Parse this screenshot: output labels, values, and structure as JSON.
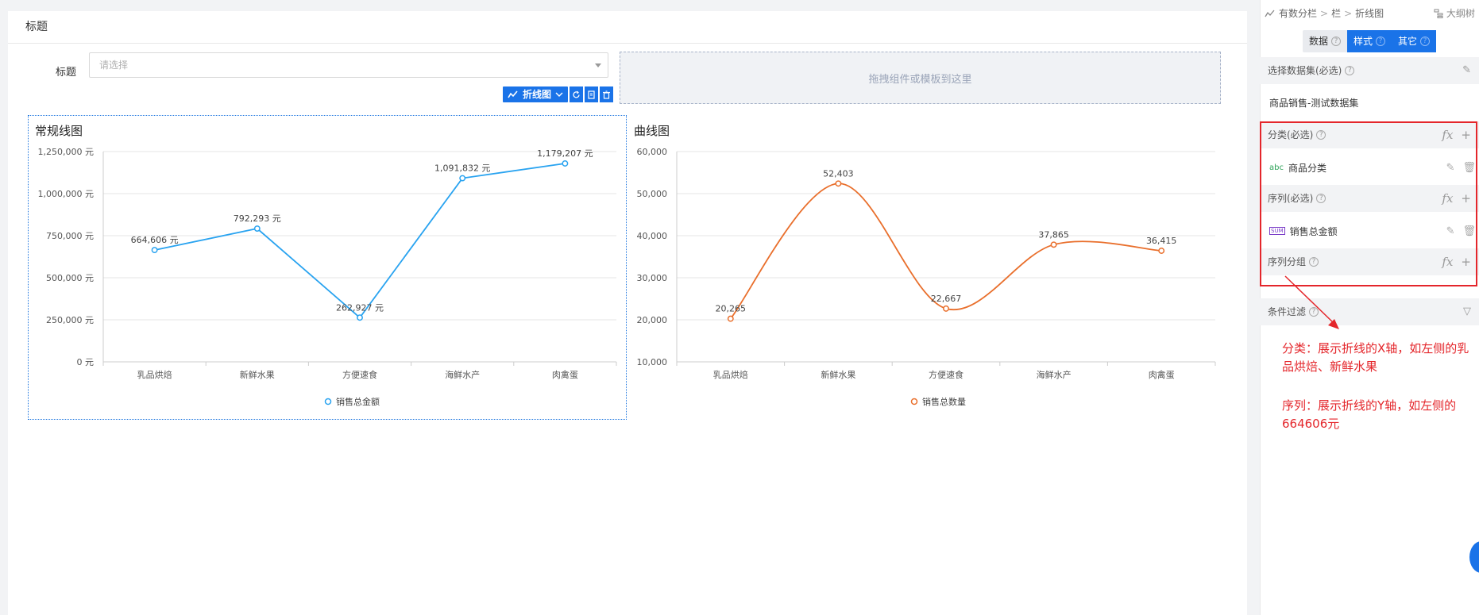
{
  "canvas": {
    "title": "标题",
    "filter_label": "标题",
    "filter_placeholder": "请选择",
    "drop_zone_text": "拖拽组件或模板到这里",
    "toolbar_label": "折线图"
  },
  "breadcrumb": [
    "有数分栏",
    "栏",
    "折线图"
  ],
  "outline_link": "大纲树",
  "panel_tabs": [
    {
      "label": "数据",
      "active": false
    },
    {
      "label": "样式",
      "active": true
    },
    {
      "label": "其它",
      "active": true
    }
  ],
  "dataset": {
    "section_label": "选择数据集(必选)",
    "value": "商品销售-测试数据集"
  },
  "category": {
    "section_label": "分类(必选)",
    "field": "商品分类",
    "field_tag": "abc"
  },
  "series": {
    "section_label": "序列(必选)",
    "field": "销售总金额",
    "field_tag": "SUM"
  },
  "series_group": {
    "section_label": "序列分组"
  },
  "condition_filter": {
    "section_label": "条件过滤"
  },
  "notes": [
    "分类：展示折线的X轴，如左侧的乳品烘焙、新鲜水果",
    "序列：展示折线的Y轴，如左侧的664606元"
  ],
  "colors": {
    "accent": "#1a73e8",
    "line_blue": "#29a3f0",
    "line_orange": "#e96f2c",
    "highlight_red": "#e4262b"
  },
  "chart_data": [
    {
      "type": "line",
      "title": "常规线图",
      "categories": [
        "乳品烘焙",
        "新鲜水果",
        "方便速食",
        "海鲜水产",
        "肉禽蛋"
      ],
      "series": [
        {
          "name": "销售总金额",
          "values": [
            664606,
            792293,
            262927,
            1091832,
            1179207
          ]
        }
      ],
      "data_labels": [
        "664,606 元",
        "792,293 元",
        "262,927 元",
        "1,091,832 元",
        "1,179,207 元"
      ],
      "yticks": [
        "0 元",
        "250,000 元",
        "500,000 元",
        "750,000 元",
        "1,000,000 元",
        "1,250,000 元"
      ],
      "ylim": [
        0,
        1250000
      ],
      "smooth": false,
      "legend": "bottom",
      "grid": true
    },
    {
      "type": "line",
      "title": "曲线图",
      "categories": [
        "乳品烘焙",
        "新鲜水果",
        "方便速食",
        "海鲜水产",
        "肉禽蛋"
      ],
      "series": [
        {
          "name": "销售总数量",
          "values": [
            20265,
            52403,
            22667,
            37865,
            36415
          ]
        }
      ],
      "data_labels": [
        "20,265",
        "52,403",
        "22,667",
        "37,865",
        "36,415"
      ],
      "yticks": [
        "10,000",
        "20,000",
        "30,000",
        "40,000",
        "50,000",
        "60,000"
      ],
      "ylim": [
        10000,
        60000
      ],
      "smooth": true,
      "legend": "bottom",
      "grid": true
    }
  ]
}
